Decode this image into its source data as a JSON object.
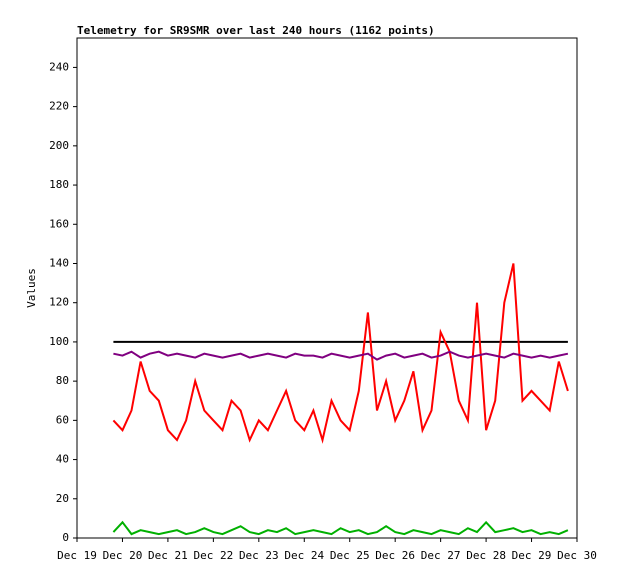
{
  "chart_data": {
    "type": "line",
    "title": "Telemetry for SR9SMR over last 240 hours (1162 points)",
    "y_label": "Values",
    "x": [
      19.8,
      20,
      20.2,
      20.4,
      20.6,
      20.8,
      21,
      21.2,
      21.4,
      21.6,
      21.8,
      22,
      22.2,
      22.4,
      22.6,
      22.8,
      23,
      23.2,
      23.4,
      23.6,
      23.8,
      24,
      24.2,
      24.4,
      24.6,
      24.8,
      25,
      25.2,
      25.4,
      25.6,
      25.8,
      26,
      26.2,
      26.4,
      26.6,
      26.8,
      27,
      27.2,
      27.4,
      27.6,
      27.8,
      28,
      28.2,
      28.4,
      28.6,
      28.8,
      29,
      29.2,
      29.4,
      29.6,
      29.8
    ],
    "series": [
      {
        "color": "#000000",
        "x": [
          19.8,
          29.8
        ],
        "values": [
          100,
          100
        ]
      },
      {
        "color": "#ff0000",
        "values": [
          60,
          55,
          65,
          90,
          75,
          70,
          55,
          50,
          60,
          80,
          65,
          60,
          55,
          70,
          65,
          50,
          60,
          55,
          65,
          75,
          60,
          55,
          65,
          50,
          70,
          60,
          55,
          75,
          115,
          65,
          80,
          60,
          70,
          85,
          55,
          65,
          105,
          95,
          70,
          60,
          120,
          55,
          70,
          120,
          140,
          70,
          75,
          70,
          65,
          90,
          75
        ]
      },
      {
        "color": "#800080",
        "values": [
          94,
          93,
          95,
          92,
          94,
          95,
          93,
          94,
          93,
          92,
          94,
          93,
          92,
          93,
          94,
          92,
          93,
          94,
          93,
          92,
          94,
          93,
          93,
          92,
          94,
          93,
          92,
          93,
          94,
          91,
          93,
          94,
          92,
          93,
          94,
          92,
          93,
          95,
          93,
          92,
          93,
          94,
          93,
          92,
          94,
          93,
          92,
          93,
          92,
          93,
          94
        ]
      },
      {
        "color": "#00b000",
        "values": [
          3,
          8,
          2,
          4,
          3,
          2,
          3,
          4,
          2,
          3,
          5,
          3,
          2,
          4,
          6,
          3,
          2,
          4,
          3,
          5,
          2,
          3,
          4,
          3,
          2,
          5,
          3,
          4,
          2,
          3,
          6,
          3,
          2,
          4,
          3,
          2,
          4,
          3,
          2,
          5,
          3,
          8,
          3,
          4,
          5,
          3,
          4,
          2,
          3,
          2,
          4
        ]
      }
    ],
    "xlim": [
      19,
      30
    ],
    "xticks": [
      {
        "value": 19,
        "label": "Dec 19"
      },
      {
        "value": 20,
        "label": "Dec 20"
      },
      {
        "value": 21,
        "label": "Dec 21"
      },
      {
        "value": 22,
        "label": "Dec 22"
      },
      {
        "value": 23,
        "label": "Dec 23"
      },
      {
        "value": 24,
        "label": "Dec 24"
      },
      {
        "value": 25,
        "label": "Dec 25"
      },
      {
        "value": 26,
        "label": "Dec 26"
      },
      {
        "value": 27,
        "label": "Dec 27"
      },
      {
        "value": 28,
        "label": "Dec 28"
      },
      {
        "value": 29,
        "label": "Dec 29"
      },
      {
        "value": 30,
        "label": "Dec 30"
      }
    ],
    "ylim": [
      0,
      255
    ],
    "yticks": [
      0,
      20,
      40,
      60,
      80,
      100,
      120,
      140,
      160,
      180,
      200,
      220,
      240
    ]
  }
}
